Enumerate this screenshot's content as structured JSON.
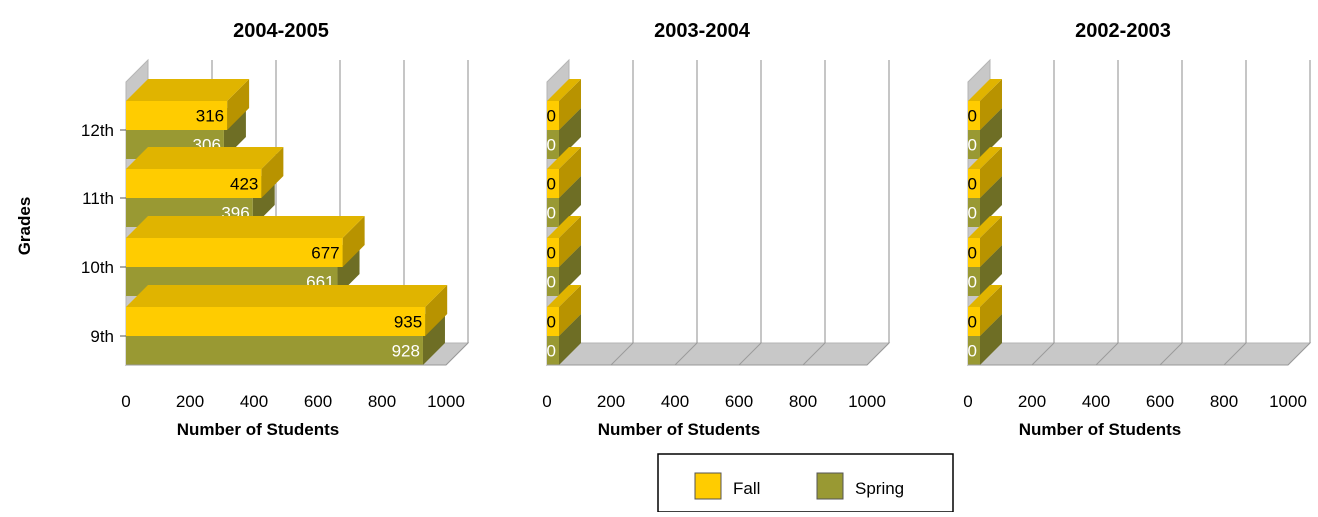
{
  "chart_data": [
    {
      "type": "bar",
      "orientation": "horizontal",
      "three_d": true,
      "title": "2004-2005",
      "ylabel": "Grades",
      "xlabel": "Number of Students",
      "categories": [
        "9th",
        "10th",
        "11th",
        "12th"
      ],
      "xlim": [
        0,
        1000
      ],
      "xticks": [
        "0",
        "200",
        "400",
        "600",
        "800",
        "1000"
      ],
      "series": [
        {
          "name": "Fall",
          "color": "#ffcc00",
          "values": [
            935,
            677,
            423,
            316
          ]
        },
        {
          "name": "Spring",
          "color": "#999933",
          "values": [
            928,
            661,
            396,
            306
          ]
        }
      ],
      "grid": true
    },
    {
      "type": "bar",
      "orientation": "horizontal",
      "three_d": true,
      "title": "2003-2004",
      "ylabel": "",
      "xlabel": "Number of Students",
      "categories": [
        "9th",
        "10th",
        "11th",
        "12th"
      ],
      "xlim": [
        0,
        1000
      ],
      "xticks": [
        "0",
        "200",
        "400",
        "600",
        "800",
        "1000"
      ],
      "series": [
        {
          "name": "Fall",
          "color": "#ffcc00",
          "values": [
            0,
            0,
            0,
            0
          ]
        },
        {
          "name": "Spring",
          "color": "#999933",
          "values": [
            0,
            0,
            0,
            0
          ]
        }
      ],
      "grid": true
    },
    {
      "type": "bar",
      "orientation": "horizontal",
      "three_d": true,
      "title": "2002-2003",
      "ylabel": "",
      "xlabel": "Number of Students",
      "categories": [
        "9th",
        "10th",
        "11th",
        "12th"
      ],
      "xlim": [
        0,
        1000
      ],
      "xticks": [
        "0",
        "200",
        "400",
        "600",
        "800",
        "1000"
      ],
      "series": [
        {
          "name": "Fall",
          "color": "#ffcc00",
          "values": [
            0,
            0,
            0,
            0
          ]
        },
        {
          "name": "Spring",
          "color": "#999933",
          "values": [
            0,
            0,
            0,
            0
          ]
        }
      ],
      "grid": true
    }
  ],
  "legend": {
    "placement": "bottom-center",
    "items": [
      {
        "label": "Fall",
        "color": "#ffcc00"
      },
      {
        "label": "Spring",
        "color": "#999933"
      }
    ]
  }
}
